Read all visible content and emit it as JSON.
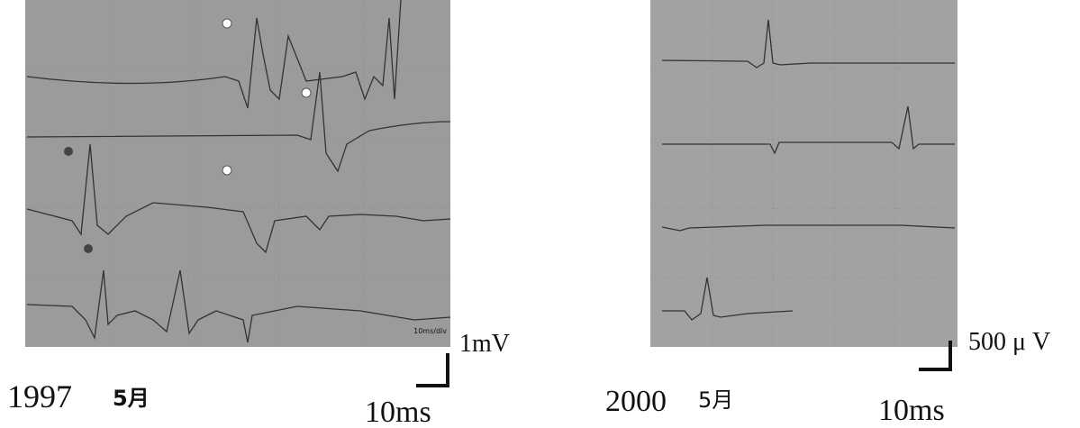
{
  "left_panel": {
    "year": "1997",
    "month": "5月",
    "division_label": "10ms/div",
    "amplitude_scale": "1mV",
    "time_scale": "10ms"
  },
  "right_panel": {
    "year": "2000",
    "month": "5月",
    "amplitude_scale": "500 μ V",
    "time_scale": "10ms"
  }
}
